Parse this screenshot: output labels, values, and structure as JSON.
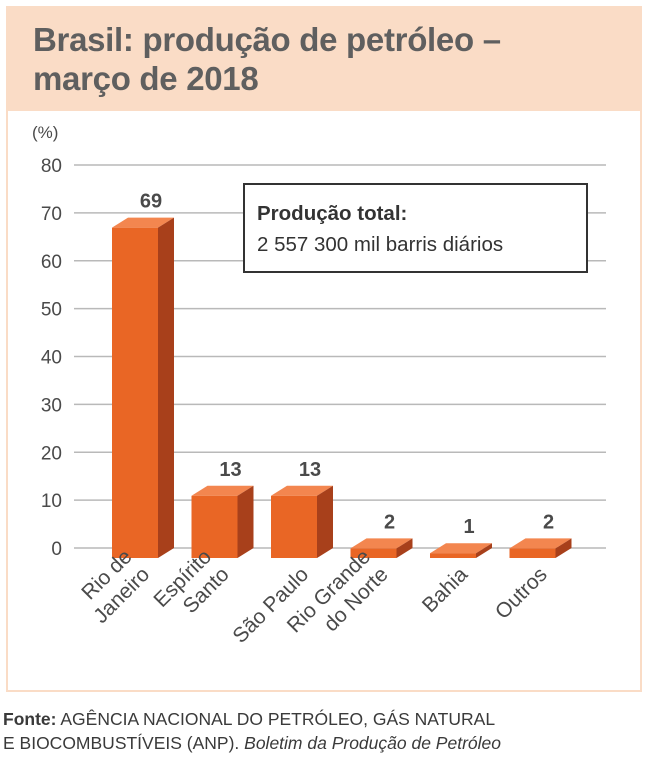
{
  "title_line1": "Brasil: produção de petróleo –",
  "title_line2": "março de 2018",
  "info_box": {
    "label": "Produção total:",
    "value": "2 557 300 mil barris diários"
  },
  "source": {
    "label": "Fonte:",
    "text1": " AGÊNCIA NACIONAL DO PETRÓLEO, GÁS NATURAL",
    "text2": "E BIOCOMBUSTÍVEIS (ANP). ",
    "text_italic": "Boletim da Produção de Petróleo"
  },
  "colors": {
    "header_band": "#fadcc6",
    "bar_front": "#e96625",
    "bar_top": "#f3864f",
    "bar_side": "#a8401b"
  },
  "chart_data": {
    "type": "bar",
    "categories": [
      [
        "Rio de",
        "Janeiro"
      ],
      [
        "Espírito",
        "Santo"
      ],
      [
        "São Paulo"
      ],
      [
        "Rio Grande",
        "do Norte"
      ],
      [
        "Bahia"
      ],
      [
        "Outros"
      ]
    ],
    "values": [
      69,
      13,
      13,
      2,
      1,
      2
    ],
    "value_labels": [
      "69",
      "13",
      "13",
      "2",
      "1",
      "2"
    ],
    "yunit": "(%)",
    "ylim": [
      0,
      80
    ],
    "yticks": [
      "0",
      "10",
      "20",
      "30",
      "40",
      "50",
      "60",
      "70",
      "80"
    ],
    "grid": true,
    "legend": "none"
  }
}
